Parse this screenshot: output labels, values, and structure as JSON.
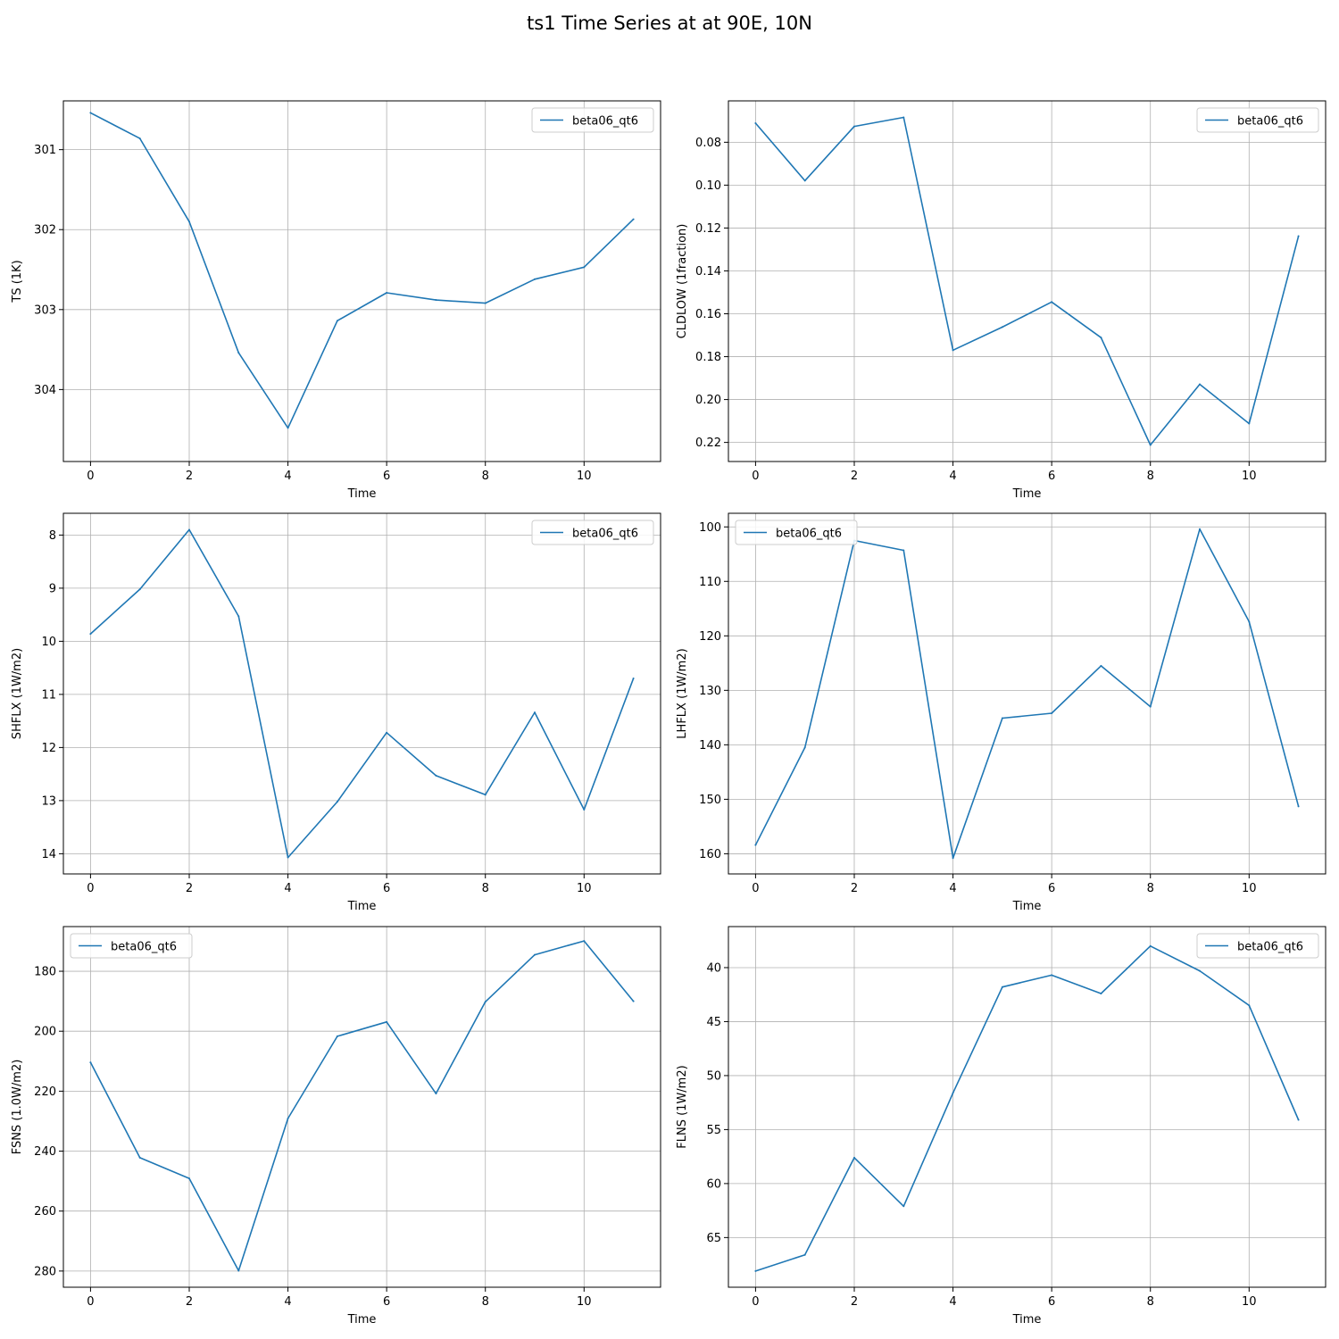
{
  "figure": {
    "title": "ts1 Time Series at at 90E, 10N"
  },
  "colors": {
    "line": "#1f77b4",
    "grid": "#b0b0b0",
    "axis": "#000000",
    "legend_border": "#cccccc"
  },
  "chart_data": [
    {
      "type": "line",
      "xlabel": "Time",
      "ylabel": "TS (1K)",
      "x": [
        0,
        1,
        2,
        3,
        4,
        5,
        6,
        7,
        8,
        9,
        10,
        11
      ],
      "xticks": [
        0,
        2,
        4,
        6,
        8,
        10
      ],
      "xlim": [
        -0.55,
        11.55
      ],
      "ylim": [
        300.39,
        304.9
      ],
      "y_inverted": true,
      "yticks": [
        301,
        302,
        303,
        304
      ],
      "ytick_labels": [
        "301",
        "302",
        "303",
        "304"
      ],
      "legend_position": "upper right",
      "grid": true,
      "series": [
        {
          "name": "beta06_qt6",
          "values": [
            300.54,
            300.86,
            301.9,
            303.54,
            304.48,
            303.14,
            302.79,
            302.88,
            302.92,
            302.62,
            302.47,
            301.87
          ]
        }
      ]
    },
    {
      "type": "line",
      "xlabel": "Time",
      "ylabel": "CLDLOW (1fraction)",
      "x": [
        0,
        1,
        2,
        3,
        4,
        5,
        6,
        7,
        8,
        9,
        10,
        11
      ],
      "xticks": [
        0,
        2,
        4,
        6,
        8,
        10
      ],
      "xlim": [
        -0.55,
        11.55
      ],
      "ylim": [
        0.0607,
        0.2289
      ],
      "y_inverted": true,
      "yticks": [
        0.08,
        0.1,
        0.12,
        0.14,
        0.16,
        0.18,
        0.2,
        0.22
      ],
      "ytick_labels": [
        "0.08",
        "0.10",
        "0.12",
        "0.14",
        "0.16",
        "0.18",
        "0.20",
        "0.22"
      ],
      "legend_position": "upper right",
      "grid": true,
      "series": [
        {
          "name": "beta06_qt6",
          "values": [
            0.0711,
            0.0979,
            0.0726,
            0.0684,
            0.177,
            0.1662,
            0.1545,
            0.1711,
            0.2212,
            0.1929,
            0.2112,
            0.1238
          ]
        }
      ]
    },
    {
      "type": "line",
      "xlabel": "Time",
      "ylabel": "SHFLX (1W/m2)",
      "x": [
        0,
        1,
        2,
        3,
        4,
        5,
        6,
        7,
        8,
        9,
        10,
        11
      ],
      "xticks": [
        0,
        2,
        4,
        6,
        8,
        10
      ],
      "xlim": [
        -0.55,
        11.55
      ],
      "ylim": [
        7.59,
        14.38
      ],
      "y_inverted": true,
      "yticks": [
        8,
        9,
        10,
        11,
        12,
        13,
        14
      ],
      "ytick_labels": [
        "8",
        "9",
        "10",
        "11",
        "12",
        "13",
        "14"
      ],
      "legend_position": "upper right",
      "grid": true,
      "series": [
        {
          "name": "beta06_qt6",
          "values": [
            9.86,
            9.02,
            7.9,
            9.53,
            14.07,
            13.02,
            11.72,
            12.53,
            12.89,
            11.34,
            13.17,
            10.7
          ]
        }
      ]
    },
    {
      "type": "line",
      "xlabel": "Time",
      "ylabel": "LHFLX (1W/m2)",
      "x": [
        0,
        1,
        2,
        3,
        4,
        5,
        6,
        7,
        8,
        9,
        10,
        11
      ],
      "xticks": [
        0,
        2,
        4,
        6,
        8,
        10
      ],
      "xlim": [
        -0.55,
        11.55
      ],
      "ylim": [
        97.5,
        163.7
      ],
      "y_inverted": true,
      "yticks": [
        100,
        110,
        120,
        130,
        140,
        150,
        160
      ],
      "ytick_labels": [
        "100",
        "110",
        "120",
        "130",
        "140",
        "150",
        "160"
      ],
      "legend_position": "upper left",
      "grid": true,
      "series": [
        {
          "name": "beta06_qt6",
          "values": [
            158.4,
            140.5,
            102.5,
            104.3,
            160.8,
            135.1,
            134.2,
            125.5,
            133.0,
            100.4,
            117.4,
            151.3
          ]
        }
      ]
    },
    {
      "type": "line",
      "xlabel": "Time",
      "ylabel": "FSNS (1.0W/m2)",
      "x": [
        0,
        1,
        2,
        3,
        4,
        5,
        6,
        7,
        8,
        9,
        10,
        11
      ],
      "xticks": [
        0,
        2,
        4,
        6,
        8,
        10
      ],
      "xlim": [
        -0.55,
        11.55
      ],
      "ylim": [
        165.1,
        285.4
      ],
      "y_inverted": true,
      "yticks": [
        180,
        200,
        220,
        240,
        260,
        280
      ],
      "ytick_labels": [
        "180",
        "200",
        "220",
        "240",
        "260",
        "280"
      ],
      "legend_position": "upper left",
      "grid": true,
      "series": [
        {
          "name": "beta06_qt6",
          "values": [
            210.4,
            242.2,
            249.1,
            279.9,
            229.1,
            201.7,
            196.9,
            220.8,
            190.2,
            174.5,
            169.9,
            190.0
          ]
        }
      ]
    },
    {
      "type": "line",
      "xlabel": "Time",
      "ylabel": "FLNS (1W/m2)",
      "x": [
        0,
        1,
        2,
        3,
        4,
        5,
        6,
        7,
        8,
        9,
        10,
        11
      ],
      "xticks": [
        0,
        2,
        4,
        6,
        8,
        10
      ],
      "xlim": [
        -0.55,
        11.55
      ],
      "ylim": [
        36.2,
        69.6
      ],
      "y_inverted": true,
      "yticks": [
        40,
        45,
        50,
        55,
        60,
        65
      ],
      "ytick_labels": [
        "40",
        "45",
        "50",
        "55",
        "60",
        "65"
      ],
      "legend_position": "upper right",
      "grid": true,
      "series": [
        {
          "name": "beta06_qt6",
          "values": [
            68.1,
            66.6,
            57.6,
            62.1,
            51.6,
            41.8,
            40.7,
            42.4,
            38.0,
            40.3,
            43.5,
            54.1
          ]
        }
      ]
    }
  ]
}
